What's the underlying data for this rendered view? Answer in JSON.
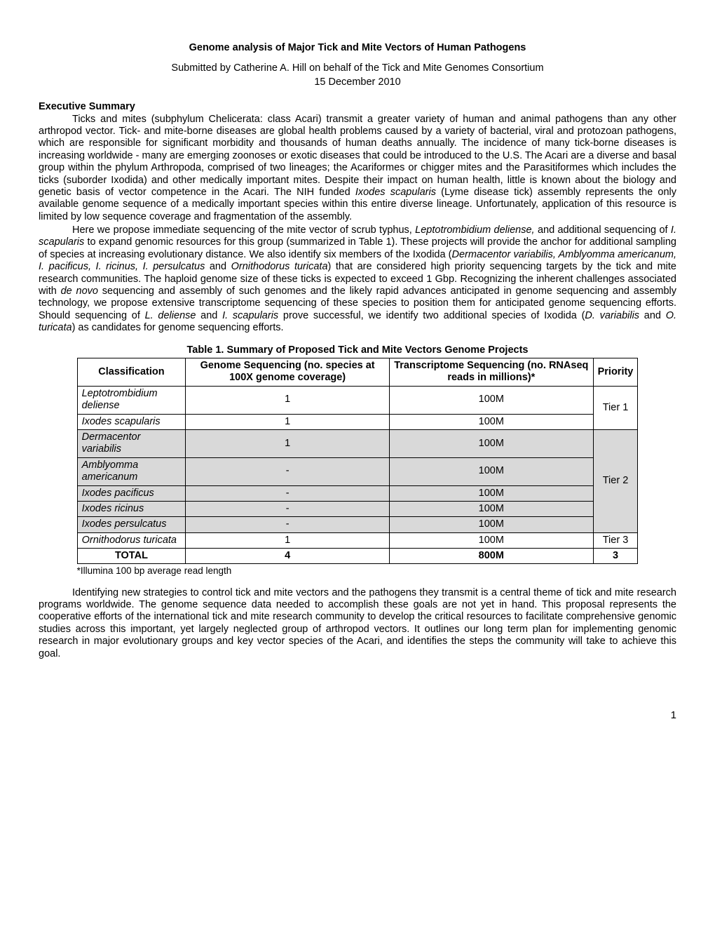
{
  "title": "Genome analysis of Major Tick and Mite Vectors of Human Pathogens",
  "subtitle": "Submitted by Catherine A. Hill on behalf of the Tick and Mite Genomes Consortium",
  "date": "15 December 2010",
  "sections": {
    "exec_heading": "Executive Summary"
  },
  "table": {
    "title": "Table 1. Summary of Proposed Tick and Mite Vectors Genome Projects",
    "headers": {
      "classification": "Classification",
      "genome": "Genome Sequencing (no. species at 100X genome coverage)",
      "transcriptome": "Transcriptome Sequencing (no. RNAseq reads in millions)*",
      "priority": "Priority"
    },
    "rows": [
      {
        "cls": "Leptotrombidium deliense",
        "gen": "1",
        "trans": "100M",
        "pri": "Tier 1",
        "shade": false,
        "italic": true
      },
      {
        "cls": "Ixodes scapularis",
        "gen": "1",
        "trans": "100M",
        "pri": "",
        "shade": false,
        "italic": true
      },
      {
        "cls": "Dermacentor variabilis",
        "gen": "1",
        "trans": "100M",
        "pri": "Tier 2",
        "shade": true,
        "italic": true
      },
      {
        "cls": "Amblyomma americanum",
        "gen": "-",
        "trans": "100M",
        "pri": "",
        "shade": true,
        "italic": true
      },
      {
        "cls": "Ixodes pacificus",
        "gen": "-",
        "trans": "100M",
        "pri": "",
        "shade": true,
        "italic": true
      },
      {
        "cls": "Ixodes ricinus",
        "gen": "-",
        "trans": "100M",
        "pri": "",
        "shade": true,
        "italic": true
      },
      {
        "cls": "Ixodes persulcatus",
        "gen": "-",
        "trans": "100M",
        "pri": "",
        "shade": true,
        "italic": true
      },
      {
        "cls": "Ornithodorus turicata",
        "gen": "1",
        "trans": "100M",
        "pri": "Tier 3",
        "shade": false,
        "italic": true
      }
    ],
    "total": {
      "cls": "TOTAL",
      "gen": "4",
      "trans": "800M",
      "pri": "3"
    },
    "footnote": "*Illumina 100 bp average read length",
    "tier_spans": {
      "tier1": 2,
      "tier2": 5,
      "tier3": 1
    },
    "colors": {
      "shade": "#d9d9d9",
      "border": "#000000",
      "bg": "#ffffff"
    }
  },
  "page_number": "1"
}
